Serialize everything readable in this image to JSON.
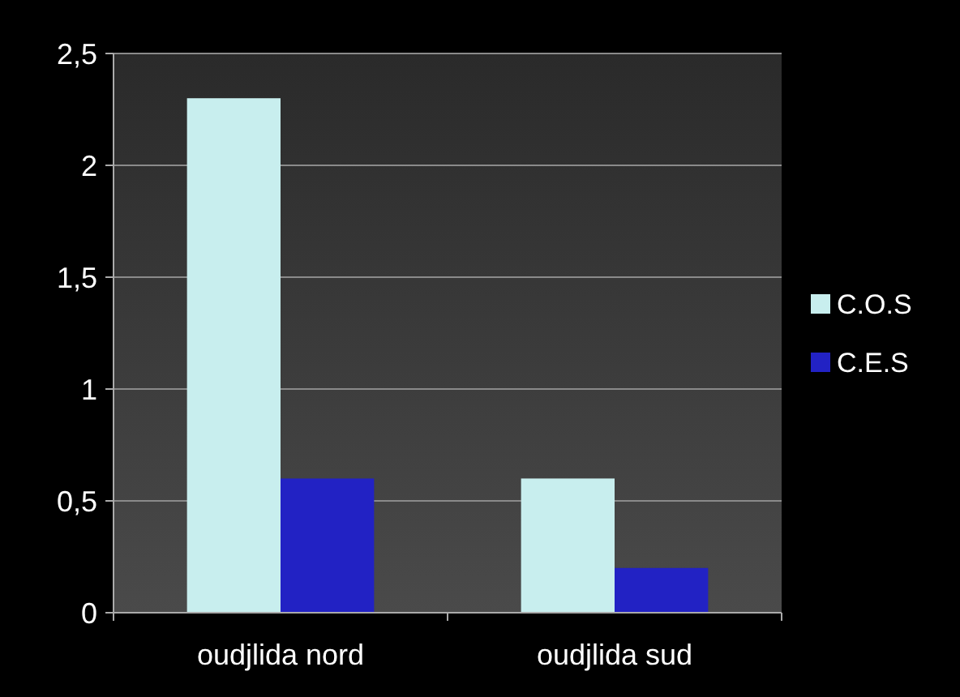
{
  "chart_data": {
    "type": "bar",
    "categories": [
      "oudjlida nord",
      "oudjlida sud"
    ],
    "series": [
      {
        "name": "C.O.S",
        "color": "#c8eeee",
        "values": [
          2.3,
          0.6
        ]
      },
      {
        "name": "C.E.S",
        "color": "#2222c4",
        "values": [
          0.6,
          0.2
        ]
      }
    ],
    "ylim": [
      0,
      2.5
    ],
    "yticks": [
      0,
      {
        "value": 0.5,
        "label": "0,5"
      },
      1,
      {
        "value": 1.5,
        "label": "1,5"
      },
      2,
      {
        "value": 2.5,
        "label": "2,5"
      }
    ],
    "grid": "y",
    "legend": "right"
  }
}
